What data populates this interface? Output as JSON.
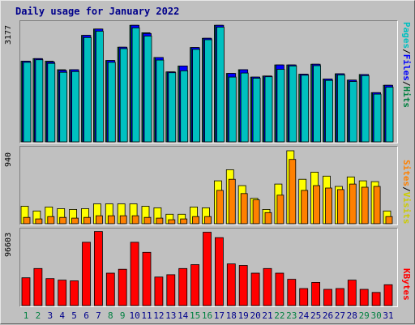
{
  "title": "Daily usage for January 2022",
  "colors": {
    "title": "#00008b",
    "pages": "#00c0c0",
    "files": "#0000ff",
    "hits": "#008040",
    "sites": "#ff8000",
    "visits": "#ffff00",
    "kbytes": "#ff0000",
    "weekend_day": "#008040",
    "weekday_day": "#00008b"
  },
  "panels": {
    "hits": {
      "ymax_label": "3177",
      "legend": [
        {
          "text": "Pages",
          "color": "#00c0c0"
        },
        {
          "text": "Files",
          "color": "#0000ff"
        },
        {
          "text": "Hits",
          "color": "#008040"
        }
      ]
    },
    "visits": {
      "ymax_label": "940",
      "legend": [
        {
          "text": "Sites",
          "color": "#ff8000"
        },
        {
          "text": "Visits",
          "color": "#ffff00"
        }
      ]
    },
    "kbytes": {
      "ymax_label": "96603",
      "legend": [
        {
          "text": "KBytes",
          "color": "#ff0000"
        }
      ]
    }
  },
  "chart_data": [
    {
      "type": "bar",
      "title": "Daily usage for January 2022",
      "categories": [
        "1",
        "2",
        "3",
        "4",
        "5",
        "6",
        "7",
        "8",
        "9",
        "10",
        "11",
        "12",
        "13",
        "14",
        "15",
        "16",
        "17",
        "18",
        "19",
        "20",
        "21",
        "22",
        "23",
        "24",
        "25",
        "26",
        "27",
        "28",
        "29",
        "30",
        "31"
      ],
      "weekend_days": [
        "1",
        "2",
        "8",
        "9",
        "15",
        "16",
        "22",
        "23",
        "29",
        "30"
      ],
      "ylim": [
        0,
        3177
      ],
      "series": [
        {
          "name": "Hits",
          "values": [
            2180,
            2250,
            2180,
            1950,
            1950,
            2880,
            3050,
            2200,
            2560,
            3150,
            2950,
            2280,
            1890,
            2050,
            2550,
            2800,
            3150,
            1850,
            1950,
            1750,
            1780,
            2080,
            2080,
            1830,
            2100,
            1700,
            1840,
            1670,
            1820,
            1330,
            1530
          ]
        },
        {
          "name": "Files",
          "values": [
            2180,
            2250,
            2160,
            1930,
            1950,
            2880,
            3050,
            2200,
            2560,
            3150,
            2930,
            2280,
            1890,
            2050,
            2550,
            2800,
            3150,
            1850,
            1950,
            1750,
            1780,
            2080,
            2080,
            1830,
            2100,
            1700,
            1840,
            1670,
            1820,
            1330,
            1530
          ]
        },
        {
          "name": "Pages",
          "values": [
            2150,
            2220,
            2120,
            1880,
            1900,
            2820,
            2990,
            2150,
            2520,
            3080,
            2860,
            2210,
            1870,
            1920,
            2500,
            2760,
            3100,
            1750,
            1860,
            1720,
            1760,
            1960,
            2050,
            1800,
            2060,
            1660,
            1810,
            1630,
            1790,
            1290,
            1480
          ]
        }
      ]
    },
    {
      "type": "bar",
      "ylim": [
        0,
        940
      ],
      "series": [
        {
          "name": "Visits",
          "values": [
            220,
            160,
            210,
            190,
            180,
            190,
            250,
            250,
            250,
            250,
            220,
            200,
            120,
            120,
            210,
            200,
            540,
            680,
            480,
            320,
            180,
            500,
            920,
            560,
            650,
            600,
            470,
            590,
            540,
            530,
            160
          ]
        },
        {
          "name": "Sites",
          "values": [
            80,
            60,
            90,
            80,
            70,
            80,
            100,
            100,
            100,
            100,
            80,
            70,
            50,
            60,
            90,
            90,
            420,
            560,
            380,
            300,
            140,
            360,
            810,
            420,
            480,
            450,
            430,
            500,
            460,
            470,
            90
          ]
        }
      ]
    },
    {
      "type": "bar",
      "ylim": [
        0,
        96603
      ],
      "series": [
        {
          "name": "KBytes",
          "values": [
            36000,
            48000,
            35000,
            33000,
            32000,
            82000,
            96000,
            42000,
            47000,
            82000,
            69000,
            37000,
            40000,
            48000,
            53000,
            95000,
            88000,
            54000,
            52000,
            42000,
            48000,
            42000,
            34000,
            22000,
            30000,
            21000,
            22000,
            33000,
            21000,
            17000,
            27000
          ]
        }
      ]
    }
  ]
}
